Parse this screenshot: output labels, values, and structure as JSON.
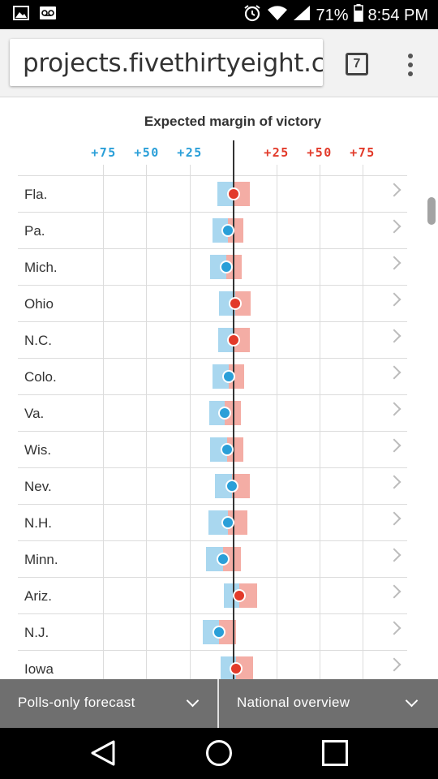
{
  "status_bar": {
    "battery": "71%",
    "time": "8:54 PM",
    "icons": [
      "image-icon",
      "voicemail-icon",
      "alarm-icon",
      "wifi-icon",
      "signal-icon",
      "battery-icon"
    ]
  },
  "browser": {
    "url": "projects.fivethirtyeight.com",
    "tab_count": "7",
    "menu_icon": "overflow-menu-icon"
  },
  "chart": {
    "title": "Expected margin of victory",
    "axis_left": [
      "+75",
      "+50",
      "+25"
    ],
    "axis_right": [
      "+25",
      "+50",
      "+75"
    ],
    "colors": {
      "dem": "#2a9fd8",
      "dem_band": "#a9d7ef",
      "rep": "#e23a2a",
      "rep_band": "#f4ada5"
    }
  },
  "chart_data": {
    "type": "scatter",
    "title": "Expected margin of victory",
    "x_ticks": [
      "+75",
      "+50",
      "+25",
      "+25",
      "+50",
      "+75"
    ],
    "xlim": [
      -100,
      100
    ],
    "note_units": "negative = Democratic margin (blue), positive = Republican margin (red)",
    "rows": [
      {
        "state": "Fla.",
        "margin": 0.5,
        "low": -9,
        "high": 10
      },
      {
        "state": "Pa.",
        "margin": -3,
        "low": -12,
        "high": 6
      },
      {
        "state": "Mich.",
        "margin": -4,
        "low": -13,
        "high": 5
      },
      {
        "state": "Ohio",
        "margin": 1.5,
        "low": -8,
        "high": 10.5
      },
      {
        "state": "N.C.",
        "margin": 0.5,
        "low": -8.5,
        "high": 10
      },
      {
        "state": "Colo.",
        "margin": -2.5,
        "low": -12,
        "high": 6.5
      },
      {
        "state": "Va.",
        "margin": -4.5,
        "low": -13.5,
        "high": 4.5
      },
      {
        "state": "Wis.",
        "margin": -3.5,
        "low": -13,
        "high": 6
      },
      {
        "state": "Nev.",
        "margin": -0.5,
        "low": -10.5,
        "high": 10
      },
      {
        "state": "N.H.",
        "margin": -3,
        "low": -14,
        "high": 8.5
      },
      {
        "state": "Minn.",
        "margin": -5.5,
        "low": -15.5,
        "high": 4.5
      },
      {
        "state": "Ariz.",
        "margin": 4,
        "low": -5,
        "high": 14
      },
      {
        "state": "N.J.",
        "margin": -8,
        "low": -17.5,
        "high": 2
      },
      {
        "state": "Iowa",
        "margin": 2,
        "low": -7,
        "high": 12
      }
    ]
  },
  "bottom": {
    "left_dropdown": "Polls-only forecast",
    "right_dropdown": "National overview"
  },
  "navbar": {
    "icons": [
      "back-icon",
      "home-icon",
      "recents-icon"
    ]
  }
}
